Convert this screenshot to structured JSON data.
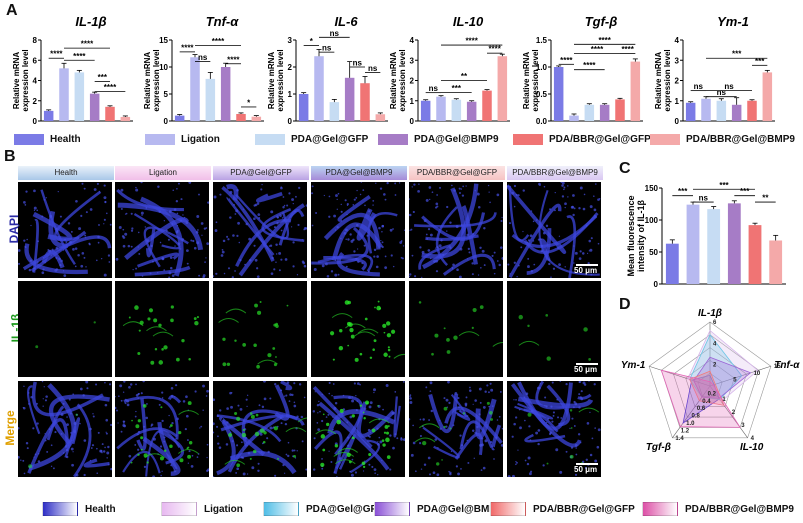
{
  "panels": {
    "a": "A",
    "b": "B",
    "c": "C",
    "d": "D"
  },
  "groups": [
    "Health",
    "Ligation",
    "PDA@Gel@GFP",
    "PDA@Gel@BMP9",
    "PDA/BBR@Gel@GFP",
    "PDA/BBR@Gel@BMP9"
  ],
  "colors": {
    "bars": [
      "#7b7be6",
      "#b7b9f0",
      "#c6dcf3",
      "#a67cc6",
      "#f07474",
      "#f4a9a9"
    ],
    "radar": [
      "#3b3bd6",
      "#d6b6ea",
      "#6cc6e6",
      "#9b63d6",
      "#f27a7a",
      "#e266b6"
    ]
  },
  "chart_data": [
    {
      "type": "bar",
      "title": "IL-1β",
      "ylabel": "Relative mRNA expression level",
      "ylim": [
        0,
        8
      ],
      "yticks": [
        "0",
        "2",
        "4",
        "6",
        "8"
      ],
      "categories": [
        "Health",
        "Ligation",
        "PDA@Gel@GFP",
        "PDA@Gel@BMP9",
        "PDA/BBR@Gel@GFP",
        "PDA/BBR@Gel@BMP9"
      ],
      "values": [
        1.0,
        5.2,
        4.8,
        2.7,
        1.4,
        0.4
      ],
      "errors": [
        0.1,
        0.5,
        0.2,
        0.15,
        0.1,
        0.1
      ],
      "annotations": [
        {
          "from": 0,
          "to": 1,
          "label": "****",
          "y": 6.2
        },
        {
          "from": 1,
          "to": 4,
          "label": "****",
          "y": 7.2
        },
        {
          "from": 1,
          "to": 3,
          "label": "****",
          "y": 6.0
        },
        {
          "from": 3,
          "to": 4,
          "label": "***",
          "y": 3.9
        },
        {
          "from": 3,
          "to": 5,
          "label": "****",
          "y": 2.9
        }
      ]
    },
    {
      "type": "bar",
      "title": "Tnf-α",
      "ylabel": "Relative mRNA expression level",
      "ylim": [
        0,
        15
      ],
      "yticks": [
        "0",
        "5",
        "10",
        "15"
      ],
      "categories": [
        "Health",
        "Ligation",
        "PDA@Gel@GFP",
        "PDA@Gel@BMP9",
        "PDA/BBR@Gel@GFP",
        "PDA/BBR@Gel@BMP9"
      ],
      "values": [
        1.0,
        11.8,
        7.8,
        10.0,
        1.3,
        0.8
      ],
      "errors": [
        0.2,
        0.5,
        1.2,
        0.7,
        0.2,
        0.2
      ],
      "annotations": [
        {
          "from": 0,
          "to": 1,
          "label": "****",
          "y": 12.8
        },
        {
          "from": 1,
          "to": 4,
          "label": "****",
          "y": 14.0
        },
        {
          "from": 1,
          "to": 2,
          "label": "ns",
          "y": 11.0
        },
        {
          "from": 3,
          "to": 4,
          "label": "****",
          "y": 10.6
        },
        {
          "from": 4,
          "to": 5,
          "label": "*",
          "y": 2.6
        }
      ]
    },
    {
      "type": "bar",
      "title": "IL-6",
      "ylabel": "Relative mRNA expression level",
      "ylim": [
        0,
        3
      ],
      "yticks": [
        "0",
        "1",
        "2",
        "3"
      ],
      "categories": [
        "Health",
        "Ligation",
        "PDA@Gel@GFP",
        "PDA@Gel@BMP9",
        "PDA/BBR@Gel@GFP",
        "PDA/BBR@Gel@BMP9"
      ],
      "values": [
        1.0,
        2.4,
        0.7,
        1.6,
        1.4,
        0.25
      ],
      "errors": [
        0.05,
        0.25,
        0.1,
        0.6,
        0.25,
        0.05
      ],
      "annotations": [
        {
          "from": 0,
          "to": 1,
          "label": "*",
          "y": 2.8
        },
        {
          "from": 1,
          "to": 3,
          "label": "ns",
          "y": 3.1
        },
        {
          "from": 1,
          "to": 2,
          "label": "ns",
          "y": 2.55
        },
        {
          "from": 3,
          "to": 4,
          "label": "ns",
          "y": 2.0
        },
        {
          "from": 4,
          "to": 5,
          "label": "ns",
          "y": 1.8
        }
      ]
    },
    {
      "type": "bar",
      "title": "IL-10",
      "ylabel": "Relative mRNA expression level",
      "ylim": [
        0,
        4
      ],
      "yticks": [
        "0",
        "1",
        "2",
        "3",
        "4"
      ],
      "categories": [
        "Health",
        "Ligation",
        "PDA@Gel@GFP",
        "PDA@Gel@BMP9",
        "PDA/BBR@Gel@GFP",
        "PDA/BBR@Gel@BMP9"
      ],
      "values": [
        1.0,
        1.2,
        1.05,
        0.95,
        1.5,
        3.2
      ],
      "errors": [
        0.05,
        0.05,
        0.05,
        0.05,
        0.05,
        0.1
      ],
      "annotations": [
        {
          "from": 0,
          "to": 1,
          "label": "ns",
          "y": 1.4
        },
        {
          "from": 1,
          "to": 4,
          "label": "**",
          "y": 2.0
        },
        {
          "from": 1,
          "to": 3,
          "label": "***",
          "y": 1.4
        },
        {
          "from": 1,
          "to": 5,
          "label": "****",
          "y": 3.75
        },
        {
          "from": 4,
          "to": 5,
          "label": "****",
          "y": 3.35
        }
      ]
    },
    {
      "type": "bar",
      "title": "Tgf-β",
      "ylabel": "Relative mRNA expression level",
      "ylim": [
        0,
        1.5
      ],
      "yticks": [
        "0.0",
        "0.5",
        "1.0",
        "1.5"
      ],
      "categories": [
        "Health",
        "Ligation",
        "PDA@Gel@GFP",
        "PDA@Gel@BMP9",
        "PDA/BBR@Gel@GFP",
        "PDA/BBR@Gel@BMP9"
      ],
      "values": [
        1.0,
        0.1,
        0.3,
        0.3,
        0.4,
        1.1
      ],
      "errors": [
        0.02,
        0.03,
        0.02,
        0.02,
        0.02,
        0.05
      ],
      "annotations": [
        {
          "from": 0,
          "to": 1,
          "label": "****",
          "y": 1.05
        },
        {
          "from": 1,
          "to": 4,
          "label": "****",
          "y": 1.25
        },
        {
          "from": 1,
          "to": 3,
          "label": "****",
          "y": 0.95
        },
        {
          "from": 1,
          "to": 5,
          "label": "****",
          "y": 1.42
        },
        {
          "from": 4,
          "to": 5,
          "label": "****",
          "y": 1.25
        }
      ]
    },
    {
      "type": "bar",
      "title": "Ym-1",
      "ylabel": "Relative mRNA expression level",
      "ylim": [
        0,
        4
      ],
      "yticks": [
        "0",
        "1",
        "2",
        "3",
        "4"
      ],
      "categories": [
        "Health",
        "Ligation",
        "PDA@Gel@GFP",
        "PDA@Gel@BMP9",
        "PDA/BBR@Gel@GFP",
        "PDA/BBR@Gel@BMP9"
      ],
      "values": [
        0.9,
        1.1,
        1.0,
        0.8,
        1.0,
        2.4
      ],
      "errors": [
        0.05,
        0.1,
        0.1,
        0.35,
        0.05,
        0.1
      ],
      "annotations": [
        {
          "from": 0,
          "to": 1,
          "label": "ns",
          "y": 1.5
        },
        {
          "from": 1,
          "to": 4,
          "label": "ns",
          "y": 1.5
        },
        {
          "from": 1,
          "to": 3,
          "label": "ns",
          "y": 1.2
        },
        {
          "from": 1,
          "to": 5,
          "label": "***",
          "y": 3.1
        },
        {
          "from": 4,
          "to": 5,
          "label": "***",
          "y": 2.75
        }
      ]
    },
    {
      "type": "bar",
      "ylabel": "Mean fluorescence intensity of IL-1β",
      "ylim": [
        0,
        150
      ],
      "yticks": [
        "0",
        "50",
        "100",
        "150"
      ],
      "categories": [
        "Health",
        "Ligation",
        "PDA@Gel@GFP",
        "PDA@Gel@BMP9",
        "PDA/BBR@Gel@GFP",
        "PDA/BBR@Gel@BMP9"
      ],
      "values": [
        63,
        124,
        117,
        126,
        92,
        68
      ],
      "errors": [
        6,
        4,
        4,
        4,
        3,
        8
      ],
      "annotations": [
        {
          "from": 0,
          "to": 1,
          "label": "***",
          "y": 138
        },
        {
          "from": 1,
          "to": 2,
          "label": "ns",
          "y": 128
        },
        {
          "from": 1,
          "to": 4,
          "label": "***",
          "y": 148
        },
        {
          "from": 3,
          "to": 4,
          "label": "***",
          "y": 138
        },
        {
          "from": 4,
          "to": 5,
          "label": "**",
          "y": 128
        }
      ]
    },
    {
      "type": "radar",
      "axes": [
        "IL-1β",
        "Tnf-α",
        "IL-10",
        "Tgf-β",
        "Ym-1"
      ],
      "axis_ticks": [
        [
          "2",
          "4",
          "6"
        ],
        [
          "5",
          "10",
          "15"
        ],
        [
          "1",
          "2",
          "3",
          "4"
        ],
        [
          "0.2",
          "0.4",
          "0.6",
          "0.8",
          "1.0",
          "1.2",
          "1.4"
        ],
        []
      ],
      "axis_max": [
        6,
        15,
        4,
        1.4,
        3
      ],
      "series": [
        {
          "name": "Health",
          "values": [
            1.0,
            1.0,
            1.0,
            1.0,
            0.9
          ]
        },
        {
          "name": "Ligation",
          "values": [
            5.2,
            11.8,
            1.2,
            0.1,
            1.1
          ]
        },
        {
          "name": "PDA@Gel@GFP",
          "values": [
            4.8,
            7.8,
            1.05,
            0.3,
            1.0
          ]
        },
        {
          "name": "PDA@Gel@BMP9",
          "values": [
            2.7,
            10.0,
            0.95,
            0.3,
            0.8
          ]
        },
        {
          "name": "PDA/BBR@Gel@GFP",
          "values": [
            1.4,
            1.3,
            1.5,
            0.4,
            1.0
          ]
        },
        {
          "name": "PDA/BBR@Gel@BMP9",
          "values": [
            0.4,
            0.8,
            3.2,
            1.1,
            2.4
          ]
        }
      ]
    }
  ],
  "microscopy": {
    "row_labels": [
      "DAPI",
      "IL-1β",
      "Merge"
    ],
    "row_colors": [
      "#2b2ba6",
      "#1c9a1c",
      "#e0a000"
    ],
    "scale_bar": "50 μm"
  }
}
